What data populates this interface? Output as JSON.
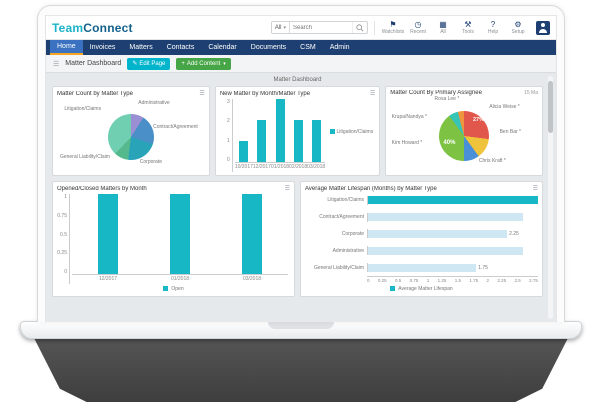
{
  "header": {
    "logo_team": "Team",
    "logo_connect": "Connect",
    "search": {
      "scope_label": "All",
      "placeholder": "Search"
    },
    "icons": [
      {
        "name": "watchlists-icon",
        "label": "Watchlists"
      },
      {
        "name": "recent-icon",
        "label": "Recent"
      },
      {
        "name": "all-icon",
        "label": "All"
      },
      {
        "name": "tools-icon",
        "label": "Tools"
      },
      {
        "name": "help-icon",
        "label": "Help"
      },
      {
        "name": "setup-icon",
        "label": "Setup"
      }
    ]
  },
  "nav": {
    "items": [
      "Home",
      "Invoices",
      "Matters",
      "Contacts",
      "Calendar",
      "Documents",
      "CSM",
      "Admin"
    ],
    "active": "Home"
  },
  "toolbar": {
    "title": "Matter Dashboard",
    "edit_page_label": "Edit Page",
    "add_content_label": "Add Content"
  },
  "dashboard": {
    "title": "Matter Dashboard"
  },
  "colors": {
    "accent_teal": "#1ab4c8",
    "navy": "#1d3f72",
    "edit_button_teal": "#00b5cb",
    "add_button_green": "#46a546",
    "bar_teal": "#18b7c6",
    "light_bar_blue": "#cfe7f2"
  },
  "chart_data": [
    {
      "type": "pie",
      "title": "Matter Count by Matter Type",
      "slices": [
        {
          "label": "Administrative",
          "value": 9,
          "color": "#9a8fd2"
        },
        {
          "label": "Contract/Agreement",
          "value": 21,
          "color": "#4a8fc7"
        },
        {
          "label": "Corporate",
          "value": 22,
          "color": "#29a3b8"
        },
        {
          "label": "General Liability/Claim",
          "value": 10,
          "color": "#55b98e"
        },
        {
          "label": "Litigation/Claims",
          "value": 38,
          "color": "#6fcfb0"
        }
      ]
    },
    {
      "type": "bar",
      "title": "New Matter by Month/Matter Type",
      "categories": [
        "10/2017",
        "12/2017",
        "01/2018",
        "02/2018",
        "03/2018"
      ],
      "values": [
        1,
        2,
        3,
        2,
        2
      ],
      "ymax": 3,
      "yticks": [
        "3",
        "2",
        "1",
        "0"
      ],
      "bar_color": "#18b7c6",
      "legend": [
        {
          "label": "Litigation/Claims",
          "color": "#18b7c6"
        }
      ],
      "legend_position": "right"
    },
    {
      "type": "pie",
      "title": "Matter Count By Primary Assignee",
      "meta": "15 Ma",
      "slices": [
        {
          "label": "Alicia Weise *",
          "value": 27,
          "color": "#e2574c",
          "pct": "27%"
        },
        {
          "label": "Ben Bar *",
          "value": 13,
          "color": "#f0c33c"
        },
        {
          "label": "Chris Kraft *",
          "value": 10,
          "color": "#4a90d9"
        },
        {
          "label": "Kim Howard *",
          "value": 40,
          "color": "#7dc242",
          "pct": "40%"
        },
        {
          "label": "Krupa/Nandya *",
          "value": 6,
          "color": "#35c4b5"
        },
        {
          "label": "Rosa Lee *",
          "value": 4,
          "color": "#f0953f"
        }
      ]
    },
    {
      "type": "bar",
      "title": "Opened/Closed Matters by Month",
      "categories": [
        "12/2017",
        "01/2018",
        "03/2018"
      ],
      "values": [
        1,
        1,
        1
      ],
      "ymax": 1,
      "yticks": [
        "1",
        "0.75",
        "0.5",
        "0.25",
        "0"
      ],
      "bar_color": "#18b7c6",
      "legend": [
        {
          "label": "Open",
          "color": "#18b7c6"
        }
      ],
      "legend_position": "bottom"
    },
    {
      "type": "hbar",
      "title": "Average Matter Lifespan (Months) by Matter Type",
      "categories": [
        "Litigation/Claims",
        "Contract/Agreement",
        "Corporate",
        "Administrative",
        "General Liability/Claim"
      ],
      "values": [
        2.75,
        2.5,
        2.25,
        2.5,
        1.75
      ],
      "value_labels": [
        "",
        "",
        "2.25",
        "",
        "1.75"
      ],
      "bar_colors": [
        "#18b7c6",
        "#cfe7f2",
        "#cfe7f2",
        "#cfe7f2",
        "#cfe7f2"
      ],
      "xmax": 2.75,
      "xticks": [
        "0",
        "0.25",
        "0.5",
        "0.75",
        "1",
        "1.25",
        "1.5",
        "1.75",
        "2",
        "2.25",
        "2.5",
        "2.75"
      ],
      "legend": [
        {
          "label": "Average Matter Lifespan",
          "color": "#18b7c6"
        }
      ],
      "legend_position": "bottom"
    }
  ]
}
